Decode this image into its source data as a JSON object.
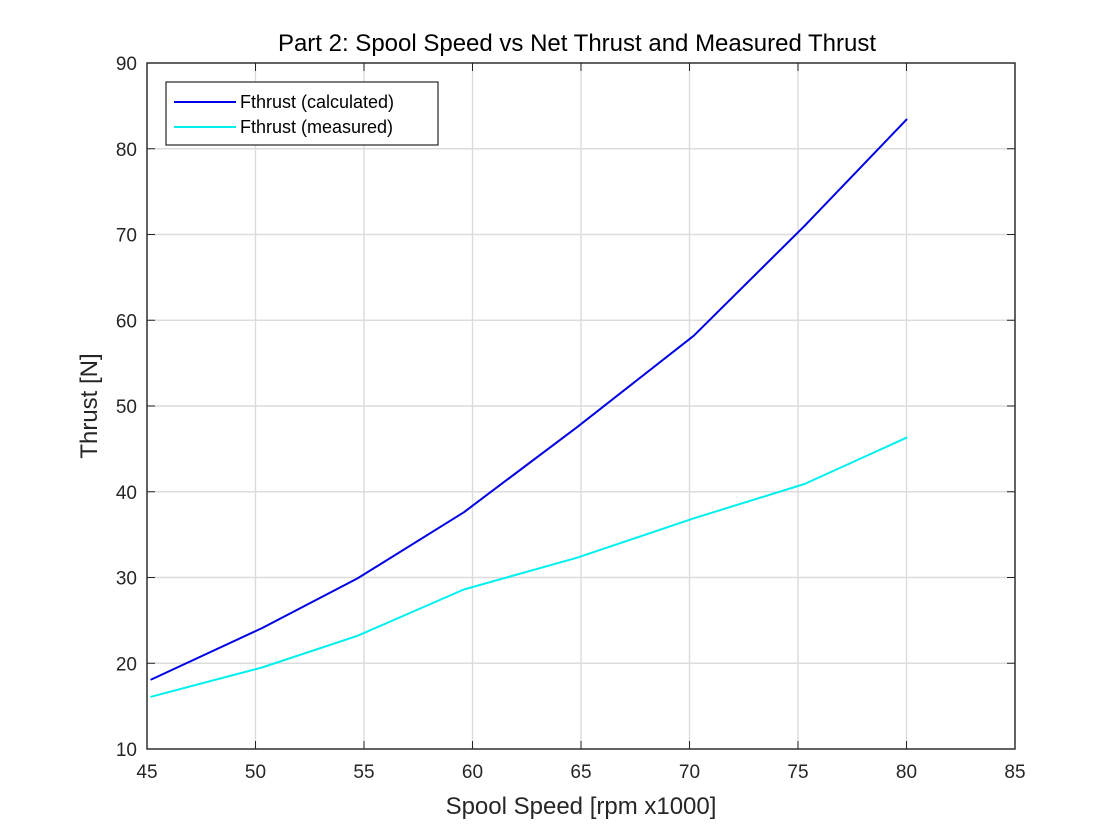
{
  "chart_data": {
    "type": "line",
    "title": "Part 2: Spool Speed vs Net Thrust and Measured Thrust",
    "xlabel": "Spool Speed [rpm x1000]",
    "ylabel": "Thrust [N]",
    "xlim": [
      45,
      85
    ],
    "ylim": [
      10,
      90
    ],
    "xticks": [
      45,
      50,
      55,
      60,
      65,
      70,
      75,
      80,
      85
    ],
    "yticks": [
      10,
      20,
      30,
      40,
      50,
      60,
      70,
      80,
      90
    ],
    "grid": true,
    "legend_position": "top-left",
    "series": [
      {
        "name": "Fthrust (calculated)",
        "color": "#0000e6",
        "x": [
          45.2,
          50.3,
          54.7,
          59.6,
          64.8,
          70.2,
          75.3,
          80.0
        ],
        "y": [
          18.1,
          24.1,
          29.9,
          37.6,
          47.5,
          58.2,
          71.0,
          83.4
        ]
      },
      {
        "name": "Fthrust (measured)",
        "color": "#00f0f0",
        "x": [
          45.2,
          50.3,
          54.7,
          59.6,
          64.8,
          70.2,
          75.3,
          80.0
        ],
        "y": [
          16.1,
          19.5,
          23.2,
          28.6,
          32.3,
          36.9,
          40.9,
          46.3
        ]
      }
    ]
  }
}
